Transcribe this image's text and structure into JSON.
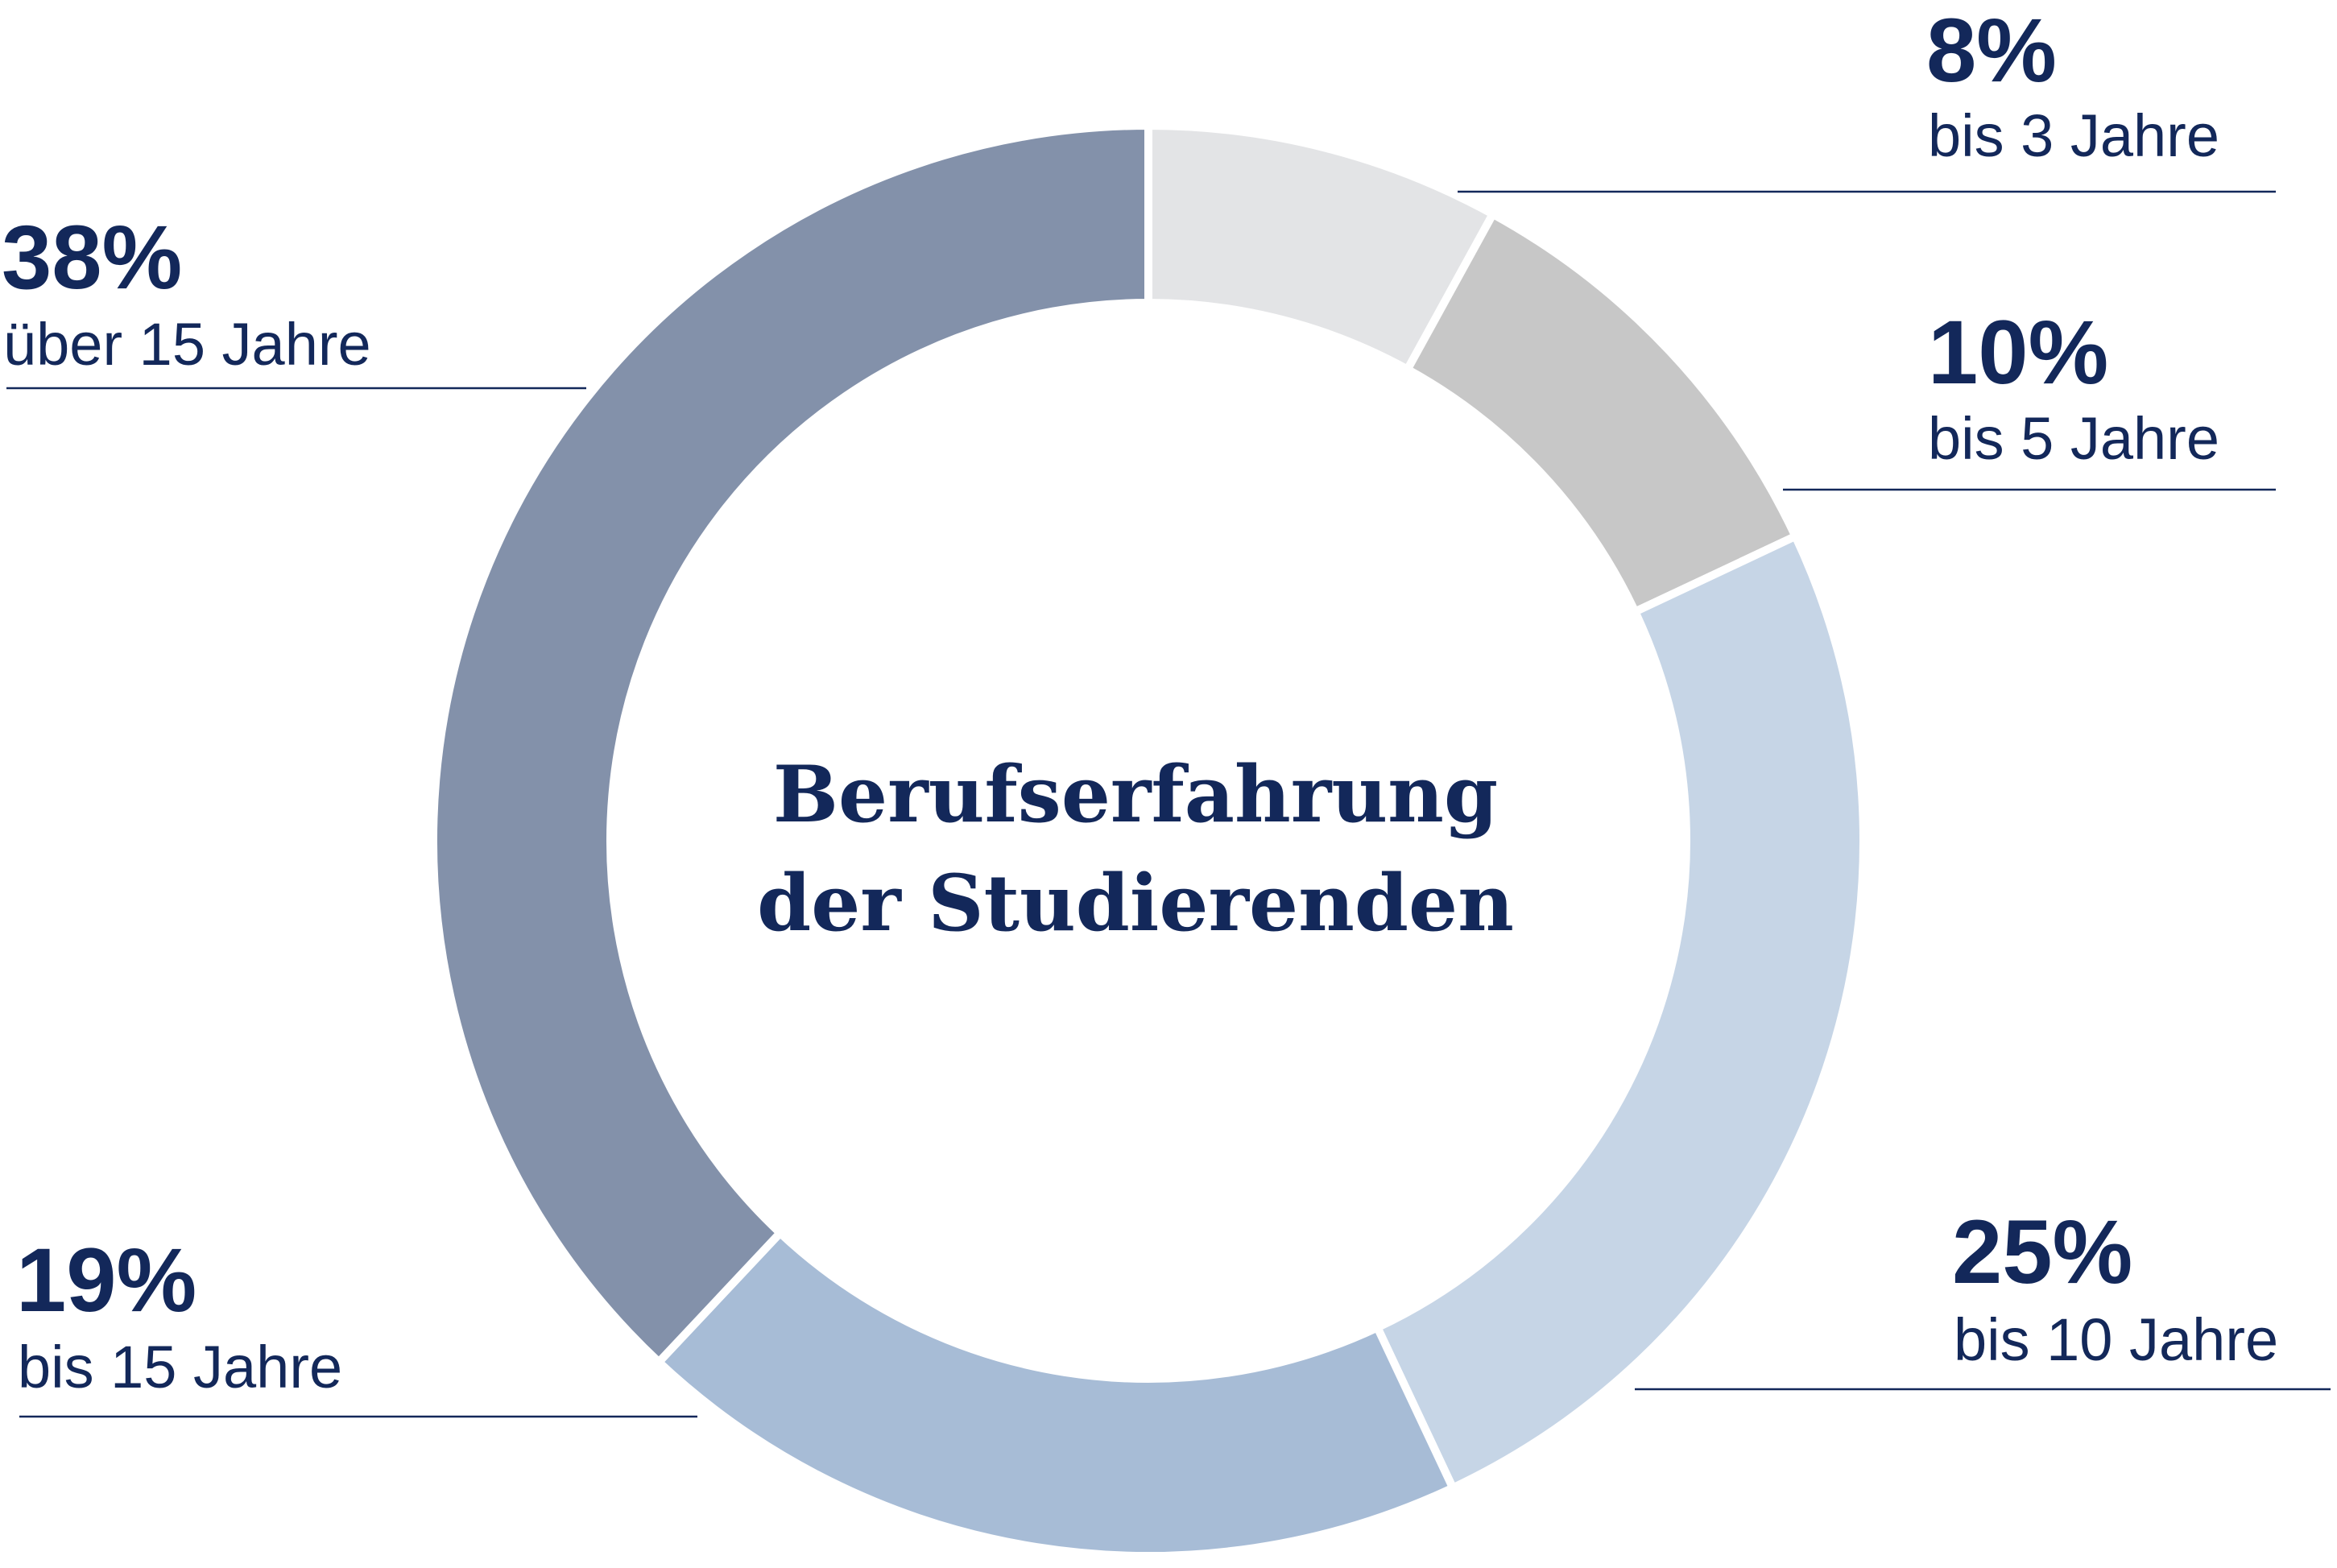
{
  "chart_data": {
    "type": "pie",
    "title": "Berufserfahrung der Studierenden",
    "title_lines": [
      "Berufserfahrung",
      "der Studierenden"
    ],
    "slices": [
      {
        "category": "bis 3 Jahre",
        "value": 8,
        "label": "8%",
        "color": "#e3e4e6"
      },
      {
        "category": "bis 5 Jahre",
        "value": 10,
        "label": "10%",
        "color": "#c7c7c7"
      },
      {
        "category": "bis 10 Jahre",
        "value": 25,
        "label": "25%",
        "color": "#c6d5e6"
      },
      {
        "category": "bis 15 Jahre",
        "value": 19,
        "label": "19%",
        "color": "#a7bcd6"
      },
      {
        "category": "über 15 Jahre",
        "value": 38,
        "label": "38%",
        "color": "#8391aa"
      }
    ],
    "text_color": "#13285a",
    "separator_color": "#ffffff"
  }
}
